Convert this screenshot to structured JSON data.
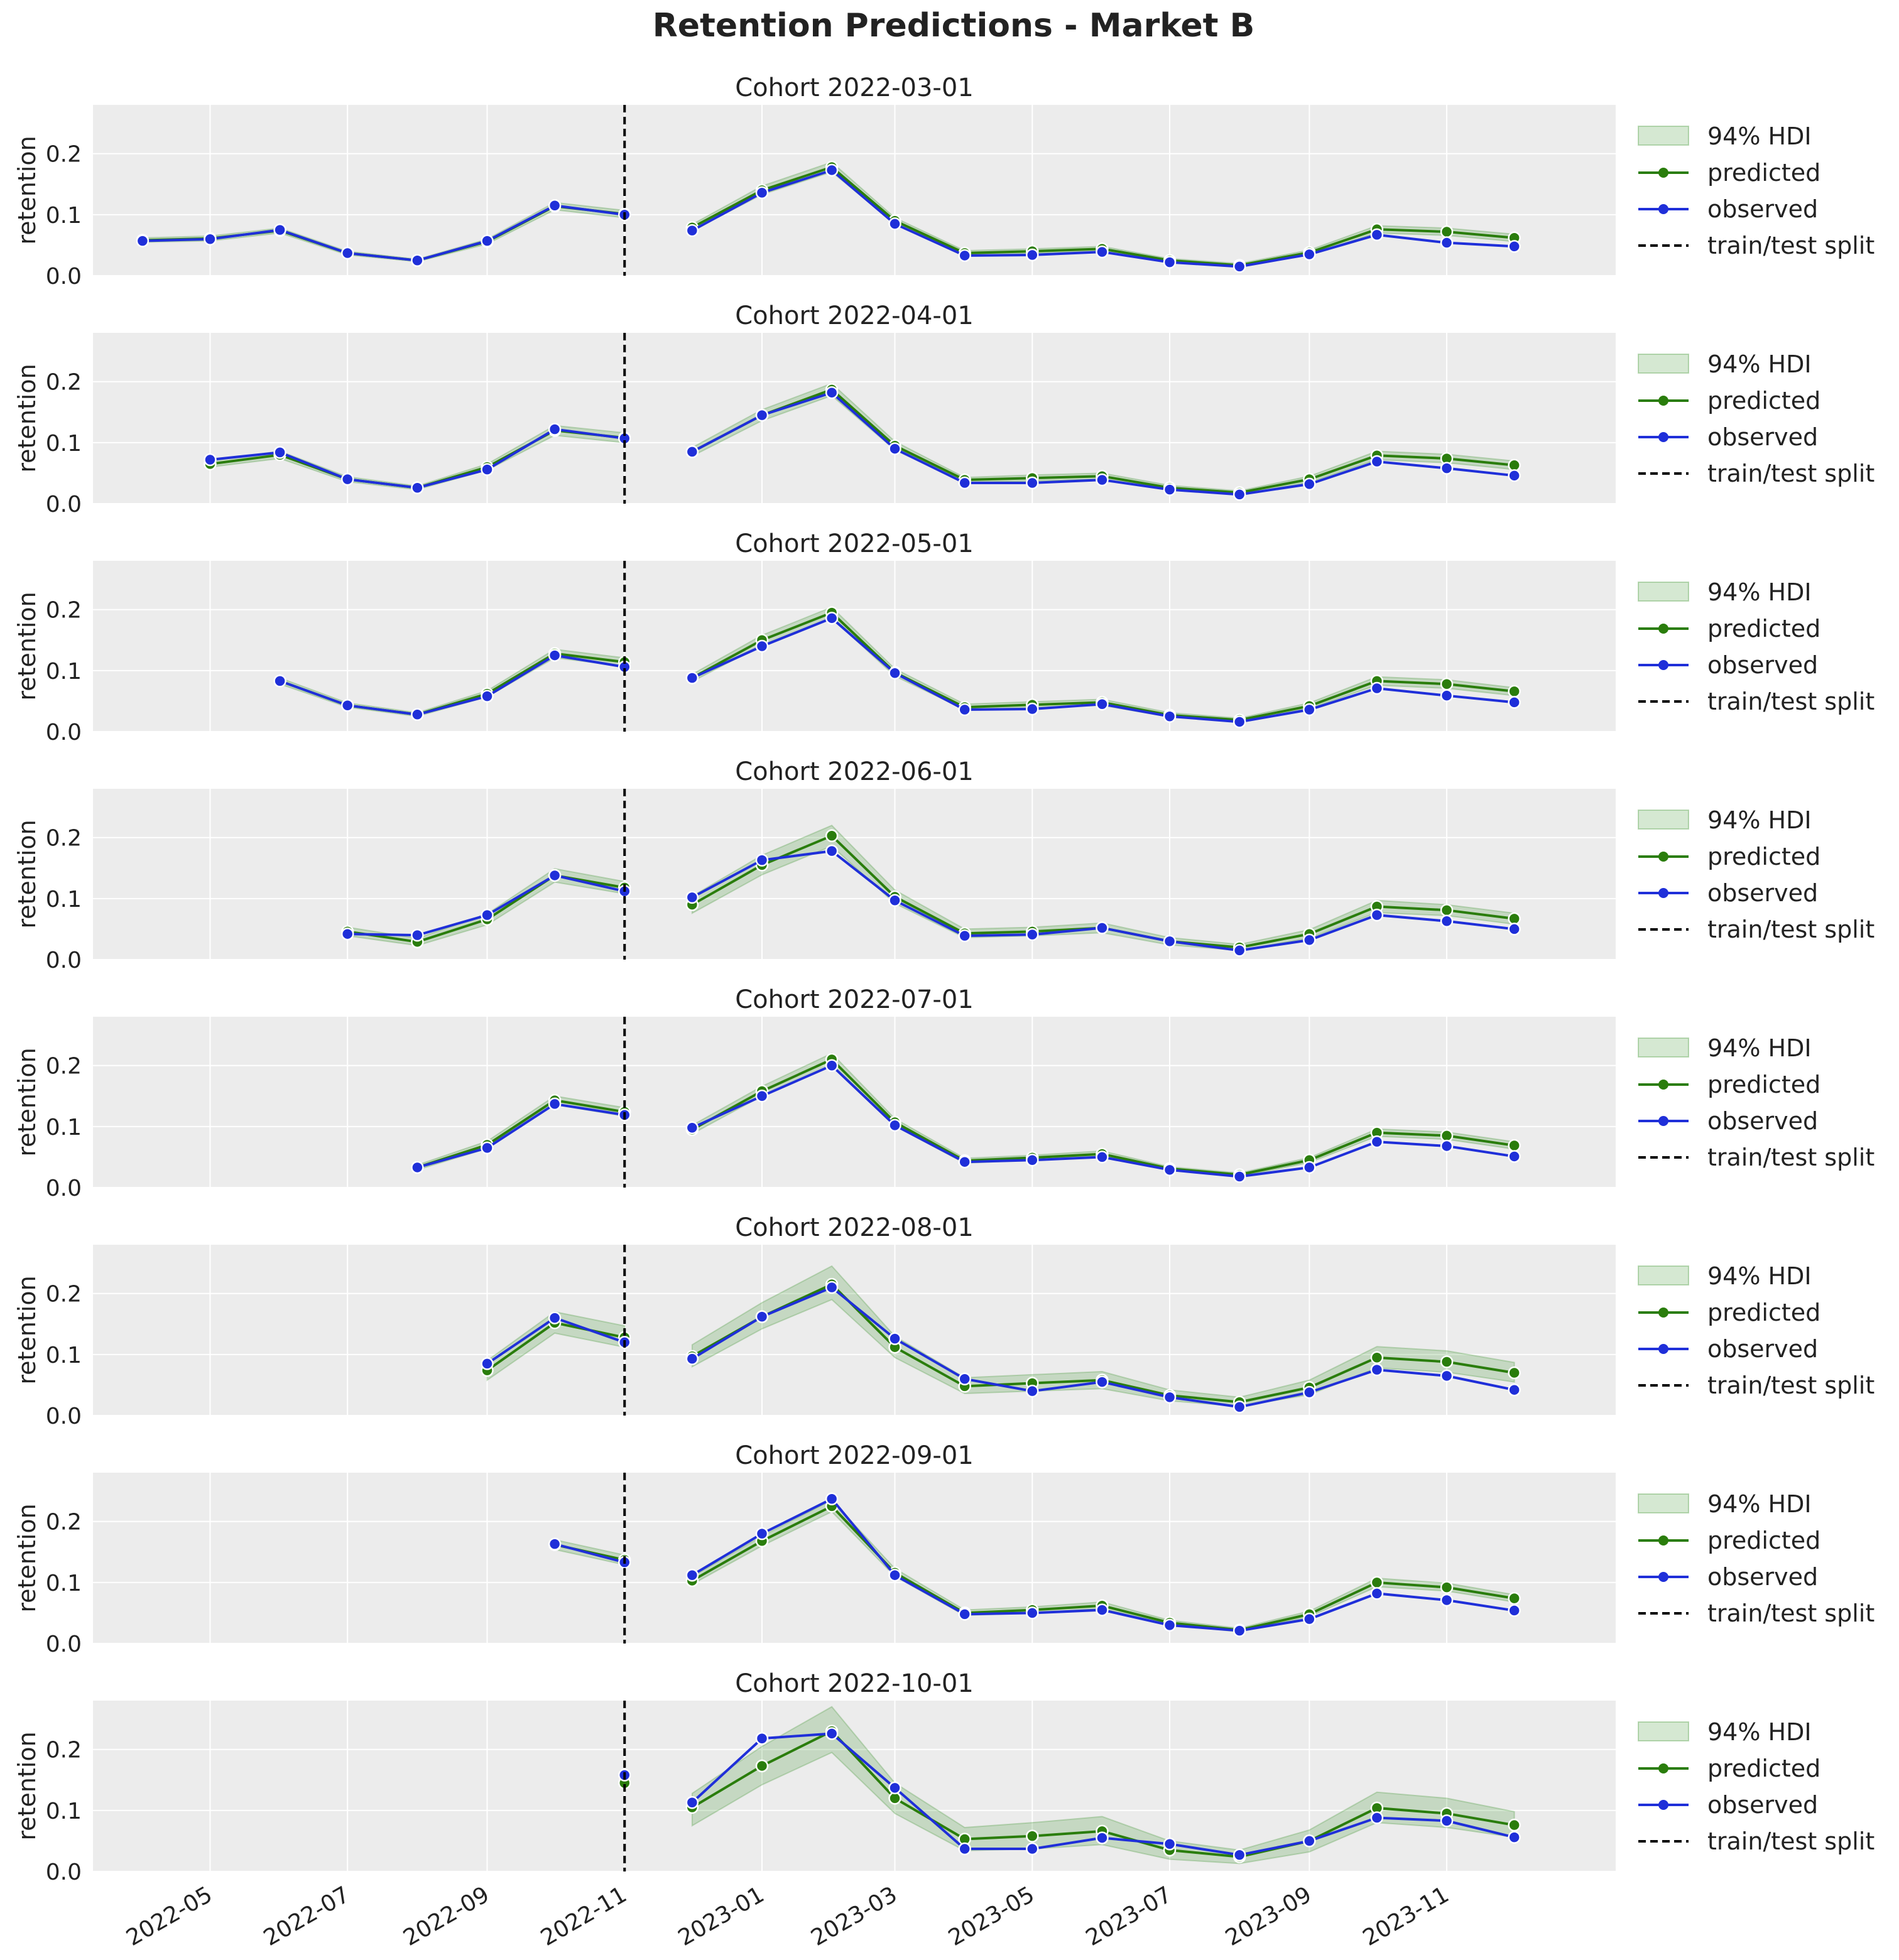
{
  "title": "Retention Predictions - Market B",
  "colors": {
    "panel_bg": "#ececec",
    "grid": "#ffffff",
    "hdi": "#2e8b1f",
    "predicted": "#2a7d0c",
    "observed": "#1f2fd9",
    "split": "#000000",
    "text": "#222222"
  },
  "legend": {
    "hdi": "94% HDI",
    "predicted": "predicted",
    "observed": "observed",
    "split": "train/test split"
  },
  "chart_data": {
    "type": "line",
    "ylabel": "retention",
    "ylim": [
      0,
      0.28
    ],
    "yticks": [
      "0.0",
      "0.1",
      "0.2"
    ],
    "xlim": [
      "2022-03-10",
      "2024-01-15"
    ],
    "xtick_labels": [
      "2022-05",
      "2022-07",
      "2022-09",
      "2022-11",
      "2023-01",
      "2023-03",
      "2023-05",
      "2023-07",
      "2023-09",
      "2023-11"
    ],
    "xtick_dates": [
      "2022-05-01",
      "2022-07-01",
      "2022-09-01",
      "2022-11-01",
      "2023-01-01",
      "2023-03-01",
      "2023-05-01",
      "2023-07-01",
      "2023-09-01",
      "2023-11-01"
    ],
    "train_test_split": "2022-11-01",
    "panels": [
      {
        "title": "Cohort 2022-03-01",
        "x": [
          "2022-04-01",
          "2022-05-01",
          "2022-06-01",
          "2022-07-01",
          "2022-08-01",
          "2022-09-01",
          "2022-10-01",
          "2022-11-01",
          "2022-12-01",
          "2023-01-01",
          "2023-02-01",
          "2023-03-01",
          "2023-04-01",
          "2023-05-01",
          "2023-06-01",
          "2023-07-01",
          "2023-08-01",
          "2023-09-01",
          "2023-10-01",
          "2023-11-01",
          "2023-12-01"
        ],
        "predicted": [
          0.058,
          0.061,
          0.074,
          0.037,
          0.025,
          0.056,
          0.114,
          0.101,
          0.079,
          0.14,
          0.178,
          0.09,
          0.037,
          0.04,
          0.044,
          0.025,
          0.017,
          0.038,
          0.076,
          0.072,
          0.062
        ],
        "observed": [
          0.057,
          0.06,
          0.075,
          0.037,
          0.025,
          0.057,
          0.115,
          0.1,
          0.074,
          0.136,
          0.173,
          0.085,
          0.033,
          0.034,
          0.039,
          0.022,
          0.015,
          0.035,
          0.067,
          0.054,
          0.048
        ],
        "hdi_low": [
          0.055,
          0.057,
          0.07,
          0.034,
          0.023,
          0.052,
          0.108,
          0.095,
          0.074,
          0.133,
          0.17,
          0.085,
          0.033,
          0.036,
          0.04,
          0.022,
          0.015,
          0.034,
          0.07,
          0.066,
          0.056
        ],
        "hdi_high": [
          0.062,
          0.065,
          0.078,
          0.04,
          0.027,
          0.06,
          0.12,
          0.107,
          0.084,
          0.147,
          0.186,
          0.095,
          0.041,
          0.044,
          0.048,
          0.028,
          0.02,
          0.042,
          0.082,
          0.078,
          0.068
        ]
      },
      {
        "title": "Cohort 2022-04-01",
        "x": [
          "2022-05-01",
          "2022-06-01",
          "2022-07-01",
          "2022-08-01",
          "2022-09-01",
          "2022-10-01",
          "2022-11-01",
          "2022-12-01",
          "2023-01-01",
          "2023-02-01",
          "2023-03-01",
          "2023-04-01",
          "2023-05-01",
          "2023-06-01",
          "2023-07-01",
          "2023-08-01",
          "2023-09-01",
          "2023-10-01",
          "2023-11-01",
          "2023-12-01"
        ],
        "predicted": [
          0.065,
          0.08,
          0.04,
          0.026,
          0.06,
          0.12,
          0.108,
          0.085,
          0.145,
          0.187,
          0.095,
          0.039,
          0.042,
          0.045,
          0.026,
          0.018,
          0.04,
          0.079,
          0.074,
          0.063
        ],
        "observed": [
          0.072,
          0.084,
          0.04,
          0.026,
          0.056,
          0.122,
          0.107,
          0.085,
          0.145,
          0.182,
          0.09,
          0.034,
          0.034,
          0.039,
          0.023,
          0.015,
          0.032,
          0.069,
          0.058,
          0.046
        ],
        "hdi_low": [
          0.06,
          0.074,
          0.036,
          0.023,
          0.055,
          0.112,
          0.1,
          0.078,
          0.136,
          0.177,
          0.088,
          0.035,
          0.037,
          0.04,
          0.022,
          0.015,
          0.035,
          0.072,
          0.067,
          0.056
        ],
        "hdi_high": [
          0.07,
          0.086,
          0.044,
          0.029,
          0.065,
          0.128,
          0.116,
          0.092,
          0.154,
          0.197,
          0.102,
          0.043,
          0.047,
          0.05,
          0.03,
          0.021,
          0.045,
          0.086,
          0.081,
          0.07
        ]
      },
      {
        "title": "Cohort 2022-05-01",
        "x": [
          "2022-06-01",
          "2022-07-01",
          "2022-08-01",
          "2022-09-01",
          "2022-10-01",
          "2022-11-01",
          "2022-12-01",
          "2023-01-01",
          "2023-02-01",
          "2023-03-01",
          "2023-04-01",
          "2023-05-01",
          "2023-06-01",
          "2023-07-01",
          "2023-08-01",
          "2023-09-01",
          "2023-10-01",
          "2023-11-01",
          "2023-12-01"
        ],
        "predicted": [
          0.083,
          0.043,
          0.028,
          0.062,
          0.128,
          0.114,
          0.088,
          0.15,
          0.195,
          0.097,
          0.04,
          0.044,
          0.048,
          0.027,
          0.019,
          0.042,
          0.083,
          0.078,
          0.066
        ],
        "observed": [
          0.083,
          0.043,
          0.028,
          0.058,
          0.125,
          0.106,
          0.088,
          0.14,
          0.186,
          0.096,
          0.036,
          0.037,
          0.045,
          0.025,
          0.016,
          0.036,
          0.071,
          0.059,
          0.048
        ],
        "hdi_low": [
          0.078,
          0.04,
          0.025,
          0.057,
          0.121,
          0.107,
          0.082,
          0.142,
          0.186,
          0.091,
          0.036,
          0.039,
          0.043,
          0.024,
          0.016,
          0.038,
          0.076,
          0.071,
          0.059
        ],
        "hdi_high": [
          0.088,
          0.047,
          0.031,
          0.067,
          0.135,
          0.121,
          0.094,
          0.158,
          0.204,
          0.103,
          0.045,
          0.049,
          0.053,
          0.031,
          0.022,
          0.047,
          0.09,
          0.085,
          0.072
        ]
      },
      {
        "title": "Cohort 2022-06-01",
        "x": [
          "2022-07-01",
          "2022-08-01",
          "2022-09-01",
          "2022-10-01",
          "2022-11-01",
          "2022-12-01",
          "2023-01-01",
          "2023-02-01",
          "2023-03-01",
          "2023-04-01",
          "2023-05-01",
          "2023-06-01",
          "2023-07-01",
          "2023-08-01",
          "2023-09-01",
          "2023-10-01",
          "2023-11-01",
          "2023-12-01"
        ],
        "predicted": [
          0.046,
          0.029,
          0.066,
          0.138,
          0.118,
          0.09,
          0.155,
          0.203,
          0.103,
          0.043,
          0.046,
          0.052,
          0.03,
          0.02,
          0.042,
          0.087,
          0.081,
          0.067
        ],
        "observed": [
          0.042,
          0.04,
          0.073,
          0.138,
          0.112,
          0.102,
          0.163,
          0.178,
          0.097,
          0.039,
          0.041,
          0.052,
          0.03,
          0.015,
          0.032,
          0.073,
          0.063,
          0.05
        ],
        "hdi_low": [
          0.039,
          0.023,
          0.057,
          0.127,
          0.108,
          0.076,
          0.139,
          0.186,
          0.092,
          0.036,
          0.039,
          0.044,
          0.024,
          0.015,
          0.035,
          0.077,
          0.072,
          0.058
        ],
        "hdi_high": [
          0.053,
          0.035,
          0.075,
          0.149,
          0.128,
          0.104,
          0.171,
          0.22,
          0.114,
          0.05,
          0.053,
          0.06,
          0.036,
          0.025,
          0.049,
          0.097,
          0.09,
          0.076
        ]
      },
      {
        "title": "Cohort 2022-07-01",
        "x": [
          "2022-08-01",
          "2022-09-01",
          "2022-10-01",
          "2022-11-01",
          "2022-12-01",
          "2023-01-01",
          "2023-02-01",
          "2023-03-01",
          "2023-04-01",
          "2023-05-01",
          "2023-06-01",
          "2023-07-01",
          "2023-08-01",
          "2023-09-01",
          "2023-10-01",
          "2023-11-01",
          "2023-12-01"
        ],
        "predicted": [
          0.033,
          0.07,
          0.143,
          0.124,
          0.095,
          0.158,
          0.21,
          0.107,
          0.044,
          0.049,
          0.055,
          0.031,
          0.021,
          0.045,
          0.09,
          0.085,
          0.069
        ],
        "observed": [
          0.033,
          0.065,
          0.137,
          0.119,
          0.098,
          0.15,
          0.2,
          0.102,
          0.042,
          0.045,
          0.05,
          0.029,
          0.018,
          0.033,
          0.075,
          0.068,
          0.051
        ],
        "hdi_low": [
          0.029,
          0.064,
          0.136,
          0.117,
          0.088,
          0.15,
          0.2,
          0.101,
          0.04,
          0.045,
          0.05,
          0.028,
          0.018,
          0.041,
          0.084,
          0.079,
          0.063
        ],
        "hdi_high": [
          0.037,
          0.076,
          0.15,
          0.131,
          0.102,
          0.166,
          0.22,
          0.113,
          0.048,
          0.053,
          0.06,
          0.034,
          0.024,
          0.049,
          0.096,
          0.091,
          0.075
        ]
      },
      {
        "title": "Cohort 2022-08-01",
        "x": [
          "2022-09-01",
          "2022-10-01",
          "2022-11-01",
          "2022-12-01",
          "2023-01-01",
          "2023-02-01",
          "2023-03-01",
          "2023-04-01",
          "2023-05-01",
          "2023-06-01",
          "2023-07-01",
          "2023-08-01",
          "2023-09-01",
          "2023-10-01",
          "2023-11-01",
          "2023-12-01"
        ],
        "predicted": [
          0.074,
          0.152,
          0.128,
          0.097,
          0.162,
          0.215,
          0.112,
          0.048,
          0.053,
          0.058,
          0.033,
          0.022,
          0.046,
          0.095,
          0.088,
          0.07
        ],
        "observed": [
          0.085,
          0.16,
          0.12,
          0.093,
          0.162,
          0.21,
          0.126,
          0.06,
          0.04,
          0.055,
          0.03,
          0.014,
          0.038,
          0.075,
          0.065,
          0.042
        ],
        "hdi_low": [
          0.058,
          0.135,
          0.112,
          0.08,
          0.142,
          0.19,
          0.095,
          0.036,
          0.04,
          0.044,
          0.024,
          0.015,
          0.034,
          0.078,
          0.071,
          0.055
        ],
        "hdi_high": [
          0.09,
          0.17,
          0.147,
          0.116,
          0.185,
          0.245,
          0.13,
          0.062,
          0.067,
          0.072,
          0.042,
          0.03,
          0.058,
          0.113,
          0.106,
          0.087
        ]
      },
      {
        "title": "Cohort 2022-09-01",
        "x": [
          "2022-10-01",
          "2022-11-01",
          "2022-12-01",
          "2023-01-01",
          "2023-02-01",
          "2023-03-01",
          "2023-04-01",
          "2023-05-01",
          "2023-06-01",
          "2023-07-01",
          "2023-08-01",
          "2023-09-01",
          "2023-10-01",
          "2023-11-01",
          "2023-12-01"
        ],
        "predicted": [
          0.162,
          0.137,
          0.103,
          0.168,
          0.225,
          0.116,
          0.05,
          0.055,
          0.062,
          0.034,
          0.022,
          0.048,
          0.1,
          0.092,
          0.074
        ],
        "observed": [
          0.163,
          0.133,
          0.112,
          0.18,
          0.237,
          0.112,
          0.048,
          0.05,
          0.055,
          0.03,
          0.021,
          0.04,
          0.082,
          0.071,
          0.054
        ],
        "hdi_low": [
          0.154,
          0.129,
          0.097,
          0.16,
          0.216,
          0.11,
          0.046,
          0.05,
          0.057,
          0.031,
          0.019,
          0.044,
          0.093,
          0.086,
          0.068
        ],
        "hdi_high": [
          0.17,
          0.145,
          0.11,
          0.176,
          0.235,
          0.123,
          0.055,
          0.06,
          0.068,
          0.038,
          0.025,
          0.053,
          0.107,
          0.099,
          0.08
        ]
      },
      {
        "title": "Cohort 2022-10-01",
        "x": [
          "2022-11-01",
          "2022-12-01",
          "2023-01-01",
          "2023-02-01",
          "2023-03-01",
          "2023-04-01",
          "2023-05-01",
          "2023-06-01",
          "2023-07-01",
          "2023-08-01",
          "2023-09-01",
          "2023-10-01",
          "2023-11-01",
          "2023-12-01"
        ],
        "predicted": [
          0.145,
          0.105,
          0.173,
          0.23,
          0.12,
          0.053,
          0.058,
          0.066,
          0.035,
          0.024,
          0.05,
          0.104,
          0.095,
          0.076
        ],
        "observed": [
          0.158,
          0.113,
          0.218,
          0.226,
          0.137,
          0.037,
          0.037,
          0.055,
          0.045,
          0.027,
          0.05,
          0.088,
          0.083,
          0.056
        ],
        "hdi_low": [
          0.13,
          0.075,
          0.142,
          0.195,
          0.095,
          0.034,
          0.037,
          0.044,
          0.02,
          0.013,
          0.032,
          0.08,
          0.072,
          0.056
        ],
        "hdi_high": [
          0.16,
          0.128,
          0.205,
          0.27,
          0.145,
          0.072,
          0.08,
          0.09,
          0.05,
          0.035,
          0.068,
          0.13,
          0.12,
          0.098
        ]
      }
    ]
  }
}
